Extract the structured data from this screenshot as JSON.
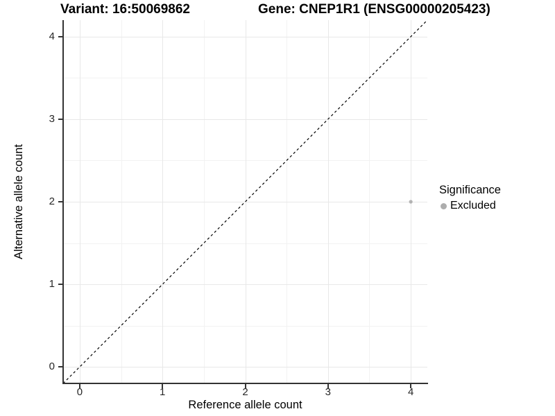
{
  "chart_data": {
    "type": "scatter",
    "title_variant": "Variant: 16:50069862",
    "title_gene": "Gene: CNEP1R1 (ENSG00000205423)",
    "xlabel": "Reference allele count",
    "ylabel": "Alternative allele count",
    "xlim": [
      -0.2,
      4.2
    ],
    "ylim": [
      -0.2,
      4.2
    ],
    "x_ticks": [
      "0",
      "1",
      "2",
      "3",
      "4"
    ],
    "y_ticks": [
      "0",
      "1",
      "2",
      "3",
      "4"
    ],
    "x_tick_values": [
      0,
      1,
      2,
      3,
      4
    ],
    "y_tick_values": [
      0,
      1,
      2,
      3,
      4
    ],
    "minor_gridlines": [
      0.5,
      1.5,
      2.5,
      3.5
    ],
    "grid": "major+minor",
    "points": [
      {
        "x": 4,
        "y": 2,
        "series": "Excluded"
      }
    ],
    "reference_line": {
      "type": "identity",
      "style": "dashed",
      "color": "#000000"
    },
    "legend": {
      "title": "Significance",
      "position": "right",
      "items": [
        {
          "label": "Excluded",
          "color": "#b3b3b3",
          "shape": "circle"
        }
      ]
    }
  },
  "style": {
    "background": "#ffffff",
    "grid_major_color": "#e8e8e8",
    "grid_minor_color": "#f2f2f2",
    "axis_line_color": "#333333",
    "tick_label_color": "#262626",
    "point_color": "#b3b3b3",
    "point_radius": 2.6,
    "legend_dot_color": "#adadad"
  }
}
